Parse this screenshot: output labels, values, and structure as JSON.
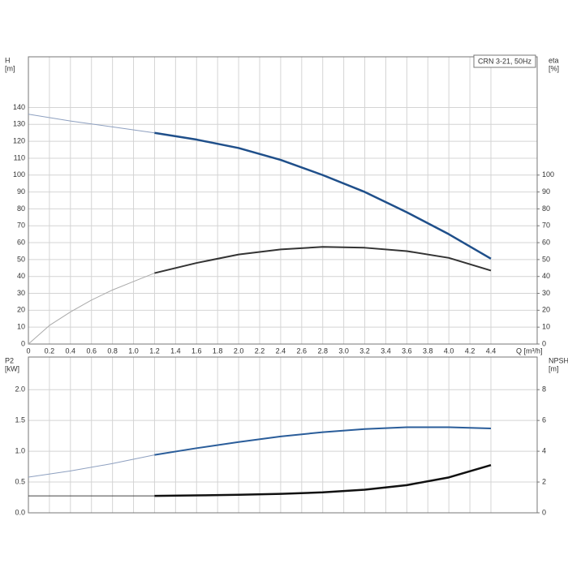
{
  "chart_data": [
    {
      "type": "line",
      "annotation": "CRN 3-21, 50Hz",
      "xlabel": "Q [m³/h]",
      "ylabel": [
        "H",
        "[m]"
      ],
      "y2label": [
        "eta",
        "[%]"
      ],
      "xlim": [
        0,
        4.84
      ],
      "ylim": [
        0,
        170
      ],
      "y2lim": [
        0,
        170
      ],
      "grid": true,
      "show_xtick_labels": true,
      "xticks": [
        0,
        0.2,
        0.4,
        0.6,
        0.8,
        {
          "value": 1,
          "label": "1.0"
        },
        1.2,
        1.4,
        1.6,
        1.8,
        {
          "value": 2,
          "label": "2.0"
        },
        2.2,
        2.4,
        2.6,
        2.8,
        {
          "value": 3,
          "label": "3.0"
        },
        3.2,
        3.4,
        3.6,
        3.8,
        {
          "value": 4,
          "label": "4.0"
        },
        4.2,
        4.4
      ],
      "yticks": [
        0,
        10,
        20,
        30,
        40,
        50,
        60,
        70,
        80,
        90,
        100,
        110,
        120,
        130,
        140
      ],
      "y2ticks": [
        0,
        10,
        20,
        30,
        40,
        50,
        60,
        70,
        80,
        90,
        100
      ],
      "series": [
        {
          "color": "#8ea0c0",
          "width": 1,
          "x": [
            0,
            0.4,
            0.8,
            1.2
          ],
          "values": [
            136,
            132,
            128.5,
            125
          ]
        },
        {
          "color": "#1f4f8a",
          "width": 2.5,
          "x": [
            1.2,
            1.6,
            2.0,
            2.4,
            2.8,
            3.2,
            3.6,
            4.0,
            4.4
          ],
          "values": [
            125,
            121,
            116,
            109,
            100,
            90,
            78,
            65,
            50.5
          ]
        },
        {
          "color": "#aaaaaa",
          "width": 1,
          "axis": "y2",
          "x": [
            0,
            0.2,
            0.4,
            0.6,
            0.8,
            1.0,
            1.2
          ],
          "values": [
            0,
            11,
            19,
            26,
            32,
            37,
            42
          ]
        },
        {
          "color": "#333333",
          "width": 2,
          "axis": "y2",
          "x": [
            1.2,
            1.6,
            2.0,
            2.4,
            2.8,
            3.2,
            3.6,
            4.0,
            4.4
          ],
          "values": [
            42,
            48,
            53,
            56,
            57.5,
            57,
            55,
            51,
            43.5
          ]
        }
      ]
    },
    {
      "type": "line",
      "ylabel": [
        "P2",
        "[kW]"
      ],
      "y2label": [
        "NPSH",
        "[m]"
      ],
      "xlim": [
        0,
        4.84
      ],
      "ylim": [
        0,
        2.53
      ],
      "y2lim": [
        0,
        10.12
      ],
      "grid": true,
      "show_xtick_labels": false,
      "xticks": [
        0,
        0.2,
        0.4,
        0.6,
        0.8,
        1,
        1.2,
        1.4,
        1.6,
        1.8,
        2,
        2.2,
        2.4,
        2.6,
        2.8,
        3,
        3.2,
        3.4,
        3.6,
        3.8,
        4,
        4.2,
        4.4
      ],
      "yticks": [
        {
          "value": 0,
          "label": "0.0"
        },
        0.5,
        {
          "value": 1,
          "label": "1.0"
        },
        1.5,
        {
          "value": 2,
          "label": "2.0"
        }
      ],
      "y2ticks": [
        0,
        2,
        4,
        6,
        8
      ],
      "series": [
        {
          "color": "#8ea0c0",
          "width": 1,
          "x": [
            0,
            0.4,
            0.8,
            1.2
          ],
          "values": [
            0.58,
            0.68,
            0.8,
            0.94
          ]
        },
        {
          "color": "#2a5d9a",
          "width": 2,
          "x": [
            1.2,
            1.6,
            2.0,
            2.4,
            2.8,
            3.2,
            3.6,
            4.0,
            4.4
          ],
          "values": [
            0.94,
            1.05,
            1.15,
            1.24,
            1.31,
            1.36,
            1.39,
            1.39,
            1.37
          ]
        },
        {
          "color": "#444444",
          "width": 1,
          "axis": "y2",
          "x": [
            0,
            1.2
          ],
          "values": [
            1.1,
            1.1
          ]
        },
        {
          "color": "#111111",
          "width": 2.5,
          "axis": "y2",
          "x": [
            1.2,
            1.6,
            2.0,
            2.4,
            2.8,
            3.2,
            3.6,
            4.0,
            4.4
          ],
          "values": [
            1.1,
            1.13,
            1.17,
            1.23,
            1.33,
            1.5,
            1.8,
            2.3,
            3.1
          ]
        }
      ]
    }
  ]
}
